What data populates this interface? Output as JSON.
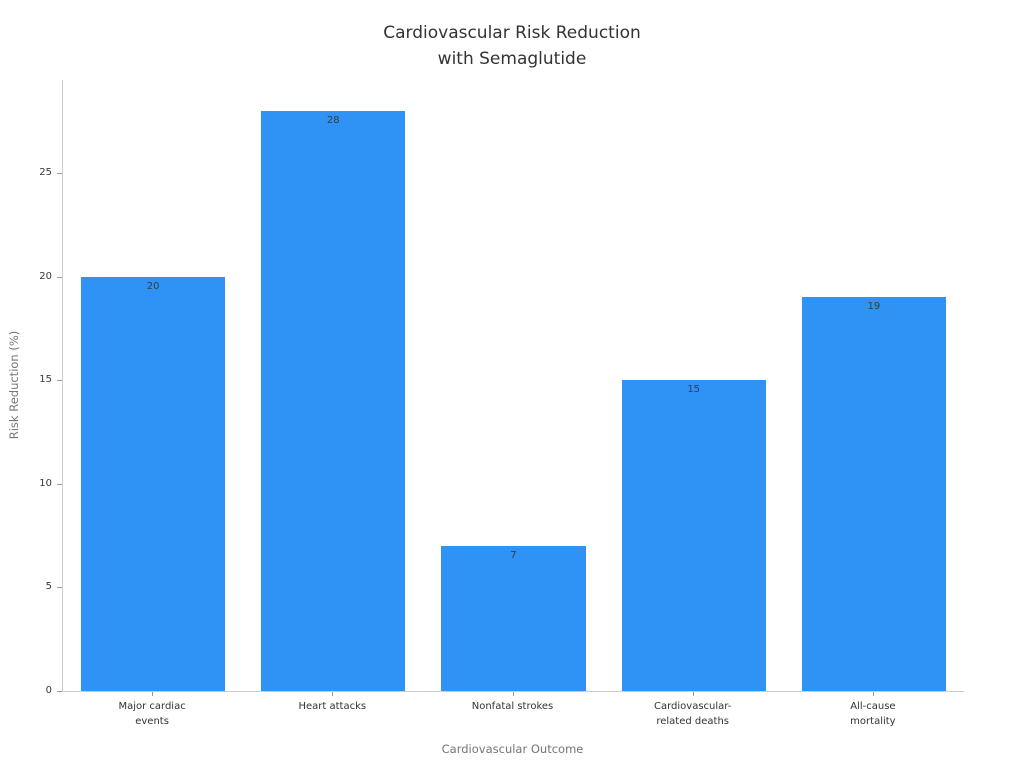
{
  "figure": {
    "background_color": "#ffffff",
    "spine_color": "#cccccc",
    "tick_color": "#999999",
    "title_color": "#333333",
    "tick_label_color": "#3a3a3a",
    "axis_title_color": "#757575",
    "bar_label_color": "#3b3b3b"
  },
  "chart_data": {
    "type": "bar",
    "title": "Cardiovascular Risk Reduction\nwith Semaglutide",
    "categories": [
      "Major cardiac\nevents",
      "Heart attacks",
      "Nonfatal strokes",
      "Cardiovascular-\nrelated deaths",
      "All-cause\nmortality"
    ],
    "values": [
      20,
      28,
      7,
      15,
      19
    ],
    "bar_labels": [
      "20",
      "28",
      "7",
      "15",
      "19"
    ],
    "xlabel": "Cardiovascular Outcome",
    "ylabel": "Risk Reduction (%)",
    "yticks": [
      0,
      5,
      10,
      15,
      20,
      25
    ],
    "ylim": [
      0,
      29.5
    ],
    "bar_color": "#2E93F5",
    "bar_width_ratio": 0.8,
    "grid": false,
    "legend": null
  }
}
